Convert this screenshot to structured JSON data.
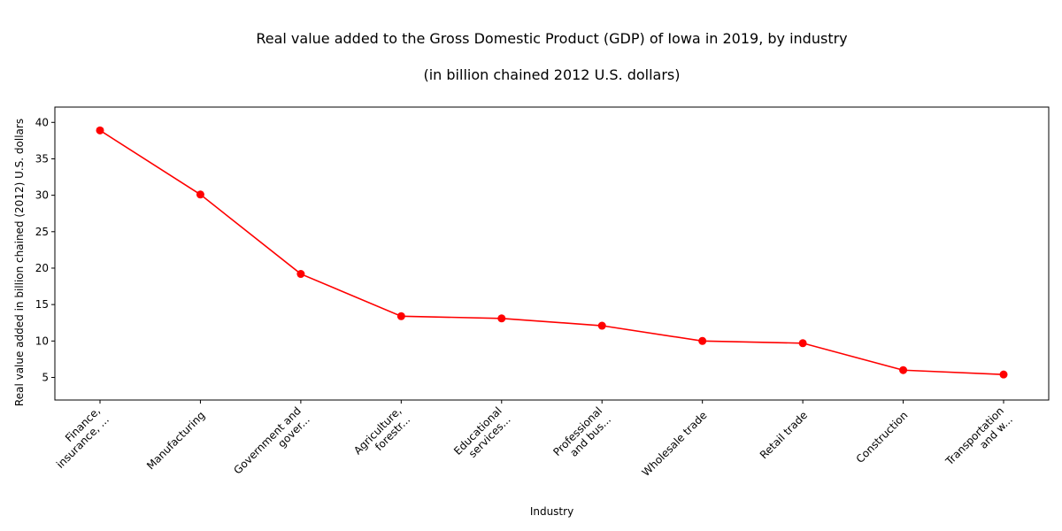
{
  "chart_data": {
    "type": "line",
    "title": "Real value added to the Gross Domestic Product (GDP) of Iowa in 2019, by industry",
    "subtitle": "(in billion chained 2012 U.S. dollars)",
    "xlabel": "Industry",
    "ylabel": "Real value added in billion chained (2012) U.S. dollars",
    "categories": [
      [
        "Finance,",
        "insurance, ..."
      ],
      [
        "Manufacturing"
      ],
      [
        "Government and",
        "gover..."
      ],
      [
        "Agriculture,",
        "forestr..."
      ],
      [
        "Educational",
        "services..."
      ],
      [
        "Professional",
        "and bus..."
      ],
      [
        "Wholesale trade"
      ],
      [
        "Retail trade"
      ],
      [
        "Construction"
      ],
      [
        "Transportation",
        "and w..."
      ]
    ],
    "series": [
      {
        "values": [
          38.9,
          30.1,
          19.2,
          13.4,
          13.1,
          12.1,
          10.0,
          9.7,
          6.0,
          5.4
        ],
        "color": "#ff0000"
      }
    ],
    "yticks": [
      5,
      10,
      15,
      20,
      25,
      30,
      35,
      40
    ],
    "ylim": [
      1.9,
      42.1
    ],
    "grid": false,
    "legend": "none"
  }
}
